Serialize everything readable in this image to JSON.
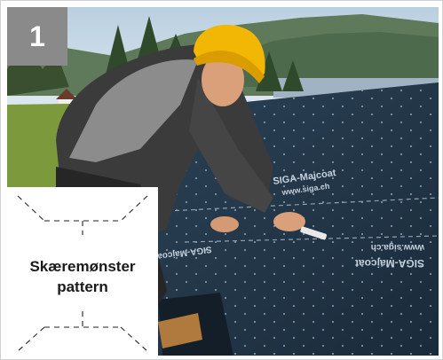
{
  "step": {
    "number": "1"
  },
  "pattern": {
    "title_da": "Skæremønster",
    "title_en": "pattern"
  },
  "membrane": {
    "brand_text": "SIGA-Majcoat",
    "url_text": "www.siga.ch",
    "color": "#1f3344"
  },
  "colors": {
    "helmet": "#f2b705",
    "jacket": "#3b3b3b",
    "sleeve": "#8c8c8c",
    "sky": "#c9d9e6",
    "grass": "#7c9a3c"
  }
}
